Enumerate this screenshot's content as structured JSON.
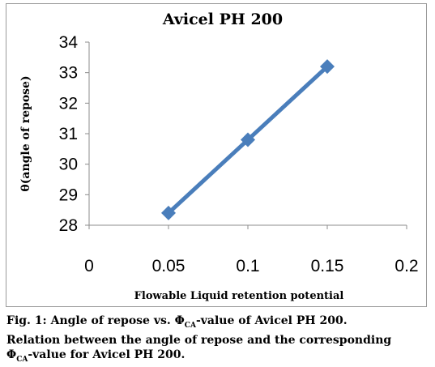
{
  "chart_data": {
    "type": "line",
    "title": "Avicel PH 200",
    "xlabel": "Flowable Liquid retention potential",
    "ylabel": "θ(angle of repose)",
    "x_ticks": [
      "0",
      "0.05",
      "0.1",
      "0.15",
      "0.2"
    ],
    "y_ticks": [
      "28",
      "29",
      "30",
      "31",
      "32",
      "33",
      "34"
    ],
    "xlim": [
      0,
      0.2
    ],
    "ylim": [
      28,
      34
    ],
    "grid": false,
    "legend": "none",
    "series": [
      {
        "x": [
          0.05,
          0.1,
          0.15
        ],
        "values": [
          28.4,
          30.8,
          33.2
        ],
        "color": "#4a7ebb",
        "marker": "diamond"
      }
    ]
  },
  "caption": {
    "fig_label": "Fig. 1: Angle of repose vs. Φ",
    "fig_sub": "CA",
    "fig_rest": "-value of Avicel PH 200.",
    "desc": "Relation between the angle of repose and the corresponding",
    "desc2_prefix": "Φ",
    "desc2_sub": "CA",
    "desc2_rest": "-value for Avicel PH 200."
  }
}
